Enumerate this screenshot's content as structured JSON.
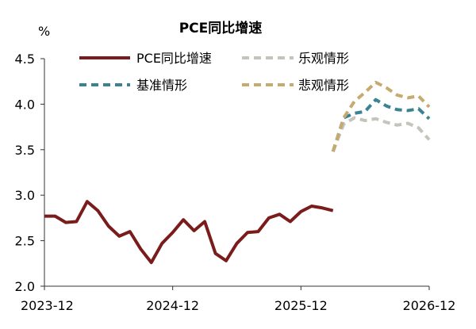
{
  "chart_data": {
    "type": "line",
    "title": "PCE同比增速",
    "ylabel": "%",
    "ylim": [
      2.0,
      4.5
    ],
    "yticks": [
      2.0,
      2.5,
      3.0,
      3.5,
      4.0,
      4.5
    ],
    "ytick_labels": [
      "2.0",
      "2.5",
      "3.0",
      "3.5",
      "4.0",
      "4.5"
    ],
    "xtick_labels": [
      "2023-12",
      "2024-12",
      "2025-12",
      "2026-12"
    ],
    "x_start": "2023-12",
    "x_end": "2026-12",
    "grid": false,
    "legend_position": "top",
    "series": [
      {
        "name": "PCE同比增速",
        "color": "#7b1c1c",
        "style": "solid",
        "x": [
          "2023-12",
          "2024-01",
          "2024-02",
          "2024-03",
          "2024-04",
          "2024-05",
          "2024-06",
          "2024-07",
          "2024-08",
          "2024-09",
          "2024-10",
          "2024-11",
          "2024-12",
          "2025-01",
          "2025-02",
          "2025-03",
          "2025-04",
          "2025-05",
          "2025-06",
          "2025-07",
          "2025-08",
          "2025-09",
          "2025-10",
          "2025-11",
          "2025-12",
          "2026-01",
          "2026-02",
          "2026-03"
        ],
        "values": [
          2.77,
          2.77,
          2.7,
          2.71,
          2.93,
          2.83,
          2.66,
          2.55,
          2.6,
          2.41,
          2.26,
          2.47,
          2.59,
          2.73,
          2.61,
          2.71,
          2.36,
          2.28,
          2.47,
          2.59,
          2.6,
          2.75,
          2.79,
          2.71,
          2.82,
          2.88,
          2.86,
          2.83
        ]
      },
      {
        "name": "乐观情形",
        "color": "#c4c4bc",
        "style": "dashed",
        "x": [
          "2026-03",
          "2026-04",
          "2026-05",
          "2026-06",
          "2026-07",
          "2026-08",
          "2026-09",
          "2026-10",
          "2026-11",
          "2026-12"
        ],
        "values": [
          3.48,
          3.78,
          3.85,
          3.82,
          3.84,
          3.8,
          3.77,
          3.79,
          3.74,
          3.61
        ]
      },
      {
        "name": "基准情形",
        "color": "#3b8391",
        "style": "dashed",
        "x": [
          "2026-03",
          "2026-04",
          "2026-05",
          "2026-06",
          "2026-07",
          "2026-08",
          "2026-09",
          "2026-10",
          "2026-11",
          "2026-12"
        ],
        "values": [
          3.48,
          3.85,
          3.9,
          3.92,
          4.05,
          3.98,
          3.94,
          3.93,
          3.95,
          3.84
        ]
      },
      {
        "name": "悲观情形",
        "color": "#c7aa6e",
        "style": "dashed",
        "x": [
          "2026-03",
          "2026-04",
          "2026-05",
          "2026-06",
          "2026-07",
          "2026-08",
          "2026-09",
          "2026-10",
          "2026-11",
          "2026-12"
        ],
        "values": [
          3.48,
          3.85,
          4.03,
          4.13,
          4.24,
          4.18,
          4.1,
          4.07,
          4.09,
          3.97
        ]
      }
    ]
  }
}
